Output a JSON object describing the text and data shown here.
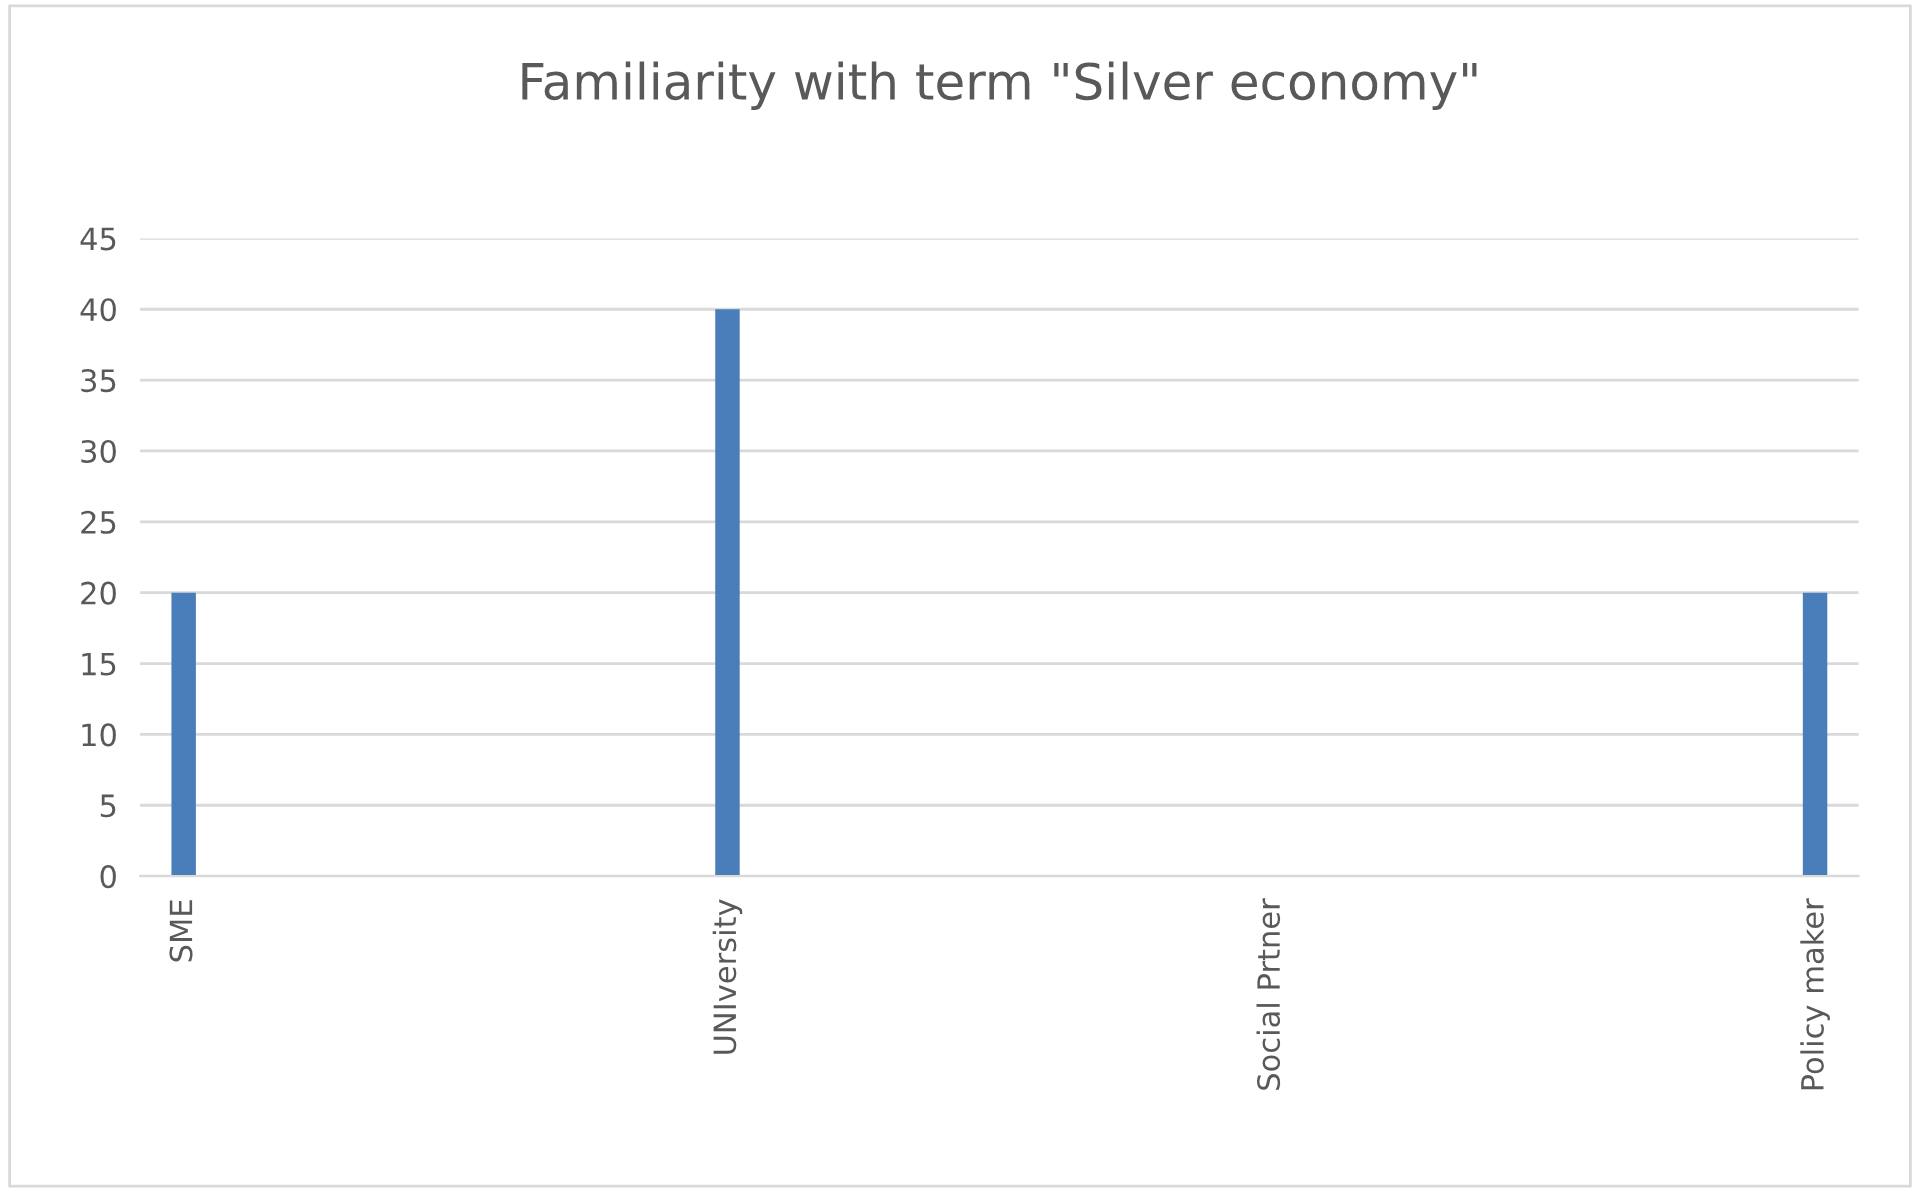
{
  "chart_data": {
    "type": "bar",
    "title": "Familiarity with term \"Silver economy\"",
    "categories": [
      "SME",
      "UNIversity",
      "Social Prtner",
      "Policy maker"
    ],
    "values": [
      20,
      40,
      0,
      20
    ],
    "color": "#4a7ebb",
    "ylim": [
      0,
      45
    ],
    "yticks": [
      0,
      5,
      10,
      15,
      20,
      25,
      30,
      35,
      40,
      45
    ],
    "grid": "y"
  }
}
